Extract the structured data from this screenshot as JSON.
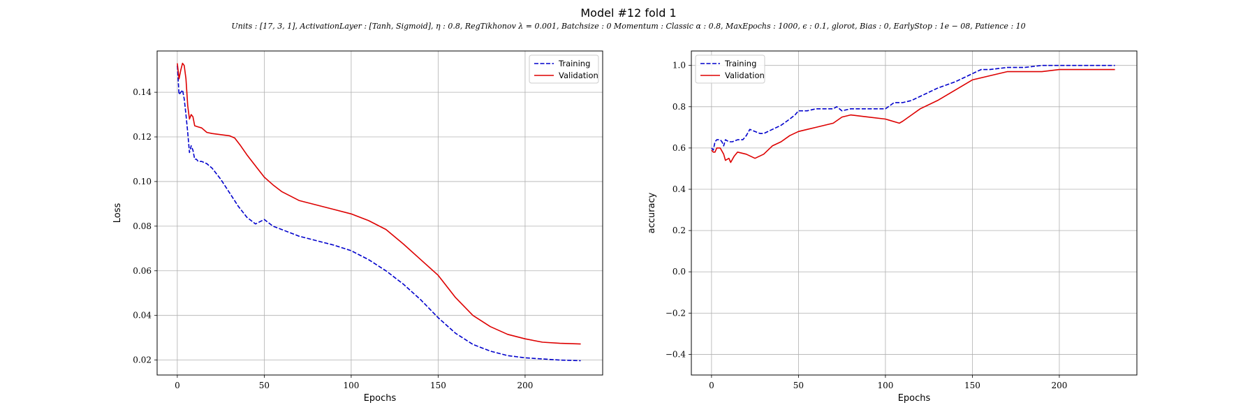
{
  "figure": {
    "title": "Model #12 fold 1",
    "subtitle": "Units : [17, 3, 1], ActivationLayer : [Tanh, Sigmoid], η : 0.8, RegTikhonov λ = 0.001, Batchsize : 0 Momentum : Classic α : 0.8, MaxEpochs : 1000, ϵ : 0.1, glorot, Bias : 0, EarlyStop : 1e − 08, Patience : 10"
  },
  "colors": {
    "training": "#0000cc",
    "validation": "#dd0000",
    "grid": "#b0b0b0"
  },
  "chart_data": [
    {
      "type": "line",
      "title": "",
      "xlabel": "Epochs",
      "ylabel": "Loss",
      "xlim": [
        -11.6,
        244.6
      ],
      "ylim": [
        0.0133,
        0.1585
      ],
      "xticks": [
        0,
        50,
        100,
        150,
        200
      ],
      "yticks": [
        0.02,
        0.04,
        0.06,
        0.08,
        0.1,
        0.12,
        0.14
      ],
      "ytick_labels": [
        "0.02",
        "0.04",
        "0.06",
        "0.08",
        "0.10",
        "0.12",
        "0.14"
      ],
      "grid": true,
      "legend": "top-right",
      "series": [
        {
          "name": "Training",
          "style": "dashed",
          "x": [
            0,
            1,
            2,
            3,
            4,
            5,
            6,
            7,
            8,
            9,
            10,
            11,
            12,
            14,
            17,
            20,
            25,
            30,
            35,
            40,
            45,
            50,
            55,
            60,
            70,
            80,
            90,
            100,
            110,
            120,
            130,
            140,
            150,
            160,
            170,
            180,
            190,
            200,
            210,
            220,
            232
          ],
          "values": [
            0.152,
            0.139,
            0.14,
            0.141,
            0.137,
            0.13,
            0.122,
            0.113,
            0.116,
            0.114,
            0.11,
            0.11,
            0.109,
            0.109,
            0.108,
            0.106,
            0.101,
            0.095,
            0.089,
            0.084,
            0.081,
            0.083,
            0.08,
            0.0785,
            0.0755,
            0.0735,
            0.0715,
            0.069,
            0.065,
            0.06,
            0.054,
            0.047,
            0.039,
            0.032,
            0.027,
            0.024,
            0.022,
            0.021,
            0.0205,
            0.02,
            0.0197
          ]
        },
        {
          "name": "Validation",
          "style": "solid",
          "x": [
            0,
            1,
            2,
            3,
            4,
            5,
            6,
            7,
            8,
            9,
            10,
            12,
            14,
            17,
            20,
            25,
            30,
            33,
            36,
            40,
            45,
            50,
            55,
            60,
            70,
            80,
            90,
            100,
            110,
            120,
            130,
            140,
            150,
            160,
            170,
            180,
            190,
            200,
            210,
            220,
            232
          ],
          "values": [
            0.153,
            0.146,
            0.15,
            0.153,
            0.152,
            0.146,
            0.134,
            0.128,
            0.13,
            0.129,
            0.125,
            0.1245,
            0.124,
            0.122,
            0.1215,
            0.121,
            0.1205,
            0.1195,
            0.1165,
            0.112,
            0.107,
            0.102,
            0.0985,
            0.0955,
            0.0915,
            0.0895,
            0.0875,
            0.0855,
            0.0825,
            0.0785,
            0.072,
            0.065,
            0.058,
            0.048,
            0.04,
            0.035,
            0.0315,
            0.0295,
            0.028,
            0.0275,
            0.0272
          ]
        }
      ]
    },
    {
      "type": "line",
      "title": "",
      "xlabel": "Epochs",
      "ylabel": "accuracy",
      "xlim": [
        -11.6,
        244.6
      ],
      "ylim": [
        -0.5,
        1.07
      ],
      "xticks": [
        0,
        50,
        100,
        150,
        200
      ],
      "yticks": [
        -0.4,
        -0.2,
        0.0,
        0.2,
        0.4,
        0.6,
        0.8,
        1.0
      ],
      "ytick_labels": [
        "−0.4",
        "−0.2",
        "0.0",
        "0.2",
        "0.4",
        "0.6",
        "0.8",
        "1.0"
      ],
      "grid": true,
      "legend": "top-left",
      "series": [
        {
          "name": "Training",
          "style": "dashed",
          "x": [
            0,
            1,
            2,
            3,
            5,
            6,
            7,
            8,
            10,
            12,
            15,
            18,
            20,
            22,
            25,
            28,
            30,
            35,
            40,
            45,
            48,
            50,
            55,
            60,
            70,
            72,
            75,
            80,
            90,
            100,
            105,
            110,
            115,
            120,
            130,
            140,
            145,
            150,
            155,
            160,
            170,
            180,
            190,
            200,
            210,
            220,
            232
          ],
          "values": [
            0.6,
            0.59,
            0.63,
            0.64,
            0.64,
            0.63,
            0.61,
            0.64,
            0.63,
            0.63,
            0.64,
            0.64,
            0.66,
            0.69,
            0.68,
            0.67,
            0.67,
            0.69,
            0.71,
            0.74,
            0.76,
            0.78,
            0.78,
            0.79,
            0.79,
            0.8,
            0.78,
            0.79,
            0.79,
            0.79,
            0.82,
            0.82,
            0.83,
            0.85,
            0.89,
            0.92,
            0.94,
            0.96,
            0.98,
            0.98,
            0.99,
            0.99,
            1.0,
            1.0,
            1.0,
            1.0,
            1.0
          ]
        },
        {
          "name": "Validation",
          "style": "solid",
          "x": [
            0,
            1,
            2,
            3,
            5,
            7,
            8,
            10,
            11,
            13,
            15,
            20,
            25,
            30,
            35,
            40,
            45,
            50,
            55,
            60,
            70,
            75,
            80,
            90,
            100,
            108,
            110,
            115,
            120,
            130,
            140,
            150,
            160,
            170,
            180,
            190,
            200,
            210,
            220,
            232
          ],
          "values": [
            0.59,
            0.58,
            0.58,
            0.6,
            0.6,
            0.57,
            0.54,
            0.55,
            0.53,
            0.56,
            0.58,
            0.57,
            0.55,
            0.57,
            0.61,
            0.63,
            0.66,
            0.68,
            0.69,
            0.7,
            0.72,
            0.75,
            0.76,
            0.75,
            0.74,
            0.72,
            0.73,
            0.76,
            0.79,
            0.83,
            0.88,
            0.93,
            0.95,
            0.97,
            0.97,
            0.97,
            0.98,
            0.98,
            0.98,
            0.98
          ]
        }
      ]
    }
  ]
}
